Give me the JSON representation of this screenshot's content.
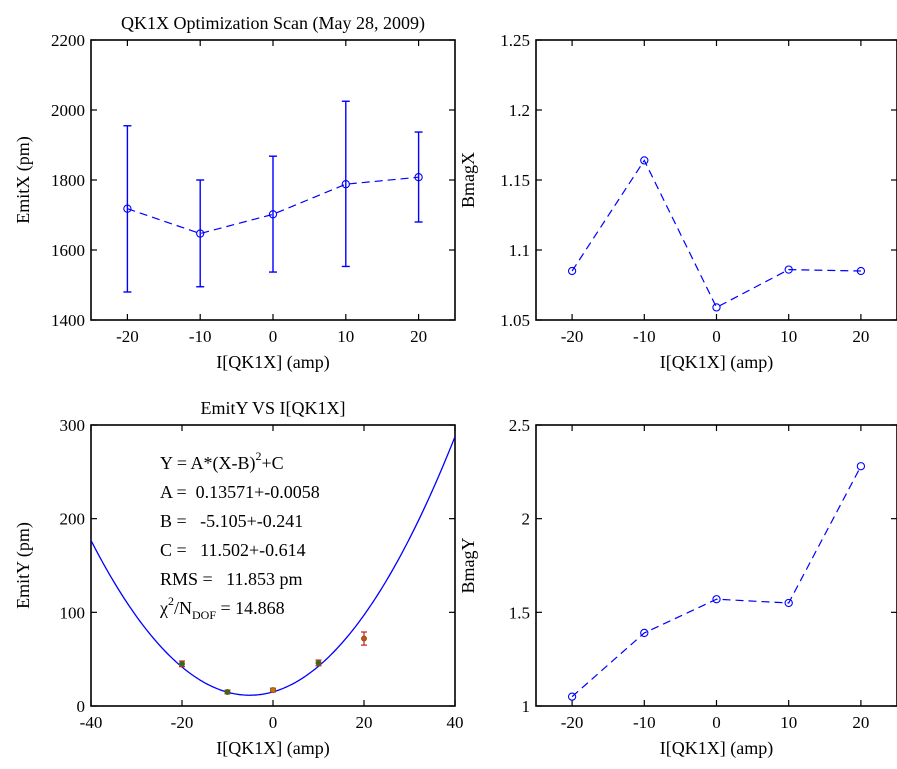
{
  "chart_data": [
    {
      "type": "line",
      "title": "QK1X Optimization Scan (May 28, 2009)",
      "xlabel": "I[QK1X] (amp)",
      "ylabel": "EmitX (pm)",
      "xlim": [
        -25,
        25
      ],
      "ylim": [
        1400,
        2200
      ],
      "xticks": [
        -20,
        -10,
        0,
        10,
        20
      ],
      "yticks": [
        1400,
        1600,
        1800,
        2000,
        2200
      ],
      "x": [
        -20,
        -10,
        0,
        10,
        20
      ],
      "y": [
        1718,
        1647,
        1702,
        1788,
        1808
      ],
      "err_low": [
        1480,
        1495,
        1537,
        1553,
        1680
      ],
      "err_high": [
        1955,
        1800,
        1868,
        2025,
        1937
      ],
      "color": "#0000ff"
    },
    {
      "type": "line",
      "title": "",
      "xlabel": "I[QK1X] (amp)",
      "ylabel": "BmagX",
      "xlim": [
        -25,
        25
      ],
      "ylim": [
        1.05,
        1.25
      ],
      "xticks": [
        -20,
        -10,
        0,
        10,
        20
      ],
      "yticks": [
        1.05,
        1.1,
        1.15,
        1.2,
        1.25
      ],
      "ytick_labels": [
        "1.05",
        "1.1",
        "1.15",
        "1.2",
        "1.25"
      ],
      "x": [
        -20,
        -10,
        0,
        10,
        20
      ],
      "y": [
        1.085,
        1.164,
        1.059,
        1.086,
        1.085
      ],
      "color": "#0000ff"
    },
    {
      "type": "scatter",
      "title": "EmitY VS I[QK1X]",
      "xlabel": "I[QK1X] (amp)",
      "ylabel": "EmitY (pm)",
      "xlim": [
        -40,
        40
      ],
      "ylim": [
        0,
        300
      ],
      "xticks": [
        -40,
        -20,
        0,
        20,
        40
      ],
      "yticks": [
        0,
        100,
        200,
        300
      ],
      "x": [
        -20,
        -10,
        0,
        10,
        20
      ],
      "y": [
        45,
        15,
        17,
        46,
        72
      ],
      "err": [
        3,
        2,
        2,
        3,
        7
      ],
      "fit": {
        "A": 0.13571,
        "B": -5.105,
        "C": 11.502
      },
      "fit_text": {
        "eq_main": "Y = A*(X-B)",
        "eq_sup": "2",
        "eq_tail": "+C",
        "a_line": "A =  0.13571+-0.0058",
        "b_line": "B =   -5.105+-0.241",
        "c_line": "C =   11.502+-0.614",
        "rms_line": "RMS =   11.853 pm",
        "chi_sym": "χ",
        "chi_sup": "2",
        "chi_slash": "/N",
        "chi_sub": "DOF",
        "chi_val": " = 14.868"
      },
      "color": "#0000ff"
    },
    {
      "type": "line",
      "title": "",
      "xlabel": "I[QK1X] (amp)",
      "ylabel": "BmagY",
      "xlim": [
        -25,
        25
      ],
      "ylim": [
        1,
        2.5
      ],
      "xticks": [
        -20,
        -10,
        0,
        10,
        20
      ],
      "yticks": [
        1,
        1.5,
        2,
        2.5
      ],
      "ytick_labels": [
        "1",
        "1.5",
        "2",
        "2.5"
      ],
      "x": [
        -20,
        -10,
        0,
        10,
        20
      ],
      "y": [
        1.05,
        1.39,
        1.57,
        1.55,
        2.28
      ],
      "color": "#0000ff"
    }
  ]
}
